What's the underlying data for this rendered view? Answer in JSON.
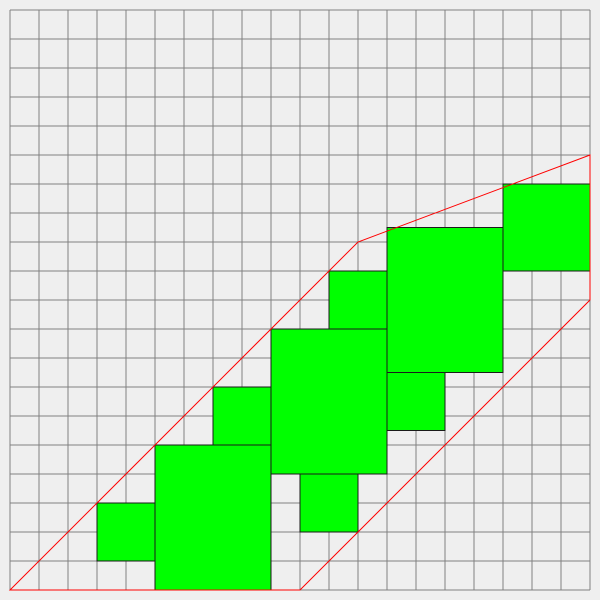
{
  "puzzle": {
    "grid": {
      "columns": 20,
      "rows": 20
    },
    "colors": {
      "background": "#efefef",
      "grid_line": "#808080",
      "tile_fill": "#00ff00",
      "tile_stroke": "#1a1a1a",
      "outline": "#ff0000"
    },
    "outline_vertices": [
      [
        0,
        20
      ],
      [
        10,
        20
      ],
      [
        20,
        10
      ],
      [
        20,
        5
      ],
      [
        12,
        8
      ]
    ],
    "tiles": [
      {
        "col": 3,
        "row": 17,
        "w": 2,
        "h": 2
      },
      {
        "col": 5,
        "row": 15,
        "w": 4,
        "h": 5
      },
      {
        "col": 7,
        "row": 13,
        "w": 2,
        "h": 2
      },
      {
        "col": 9,
        "row": 11,
        "w": 4,
        "h": 5
      },
      {
        "col": 10,
        "row": 16,
        "w": 2,
        "h": 2
      },
      {
        "col": 11,
        "row": 9,
        "w": 2,
        "h": 2
      },
      {
        "col": 13,
        "row": 7.5,
        "w": 4,
        "h": 5
      },
      {
        "col": 13,
        "row": 12.5,
        "w": 2,
        "h": 2
      },
      {
        "col": 17,
        "row": 6,
        "w": 3,
        "h": 3
      }
    ]
  }
}
